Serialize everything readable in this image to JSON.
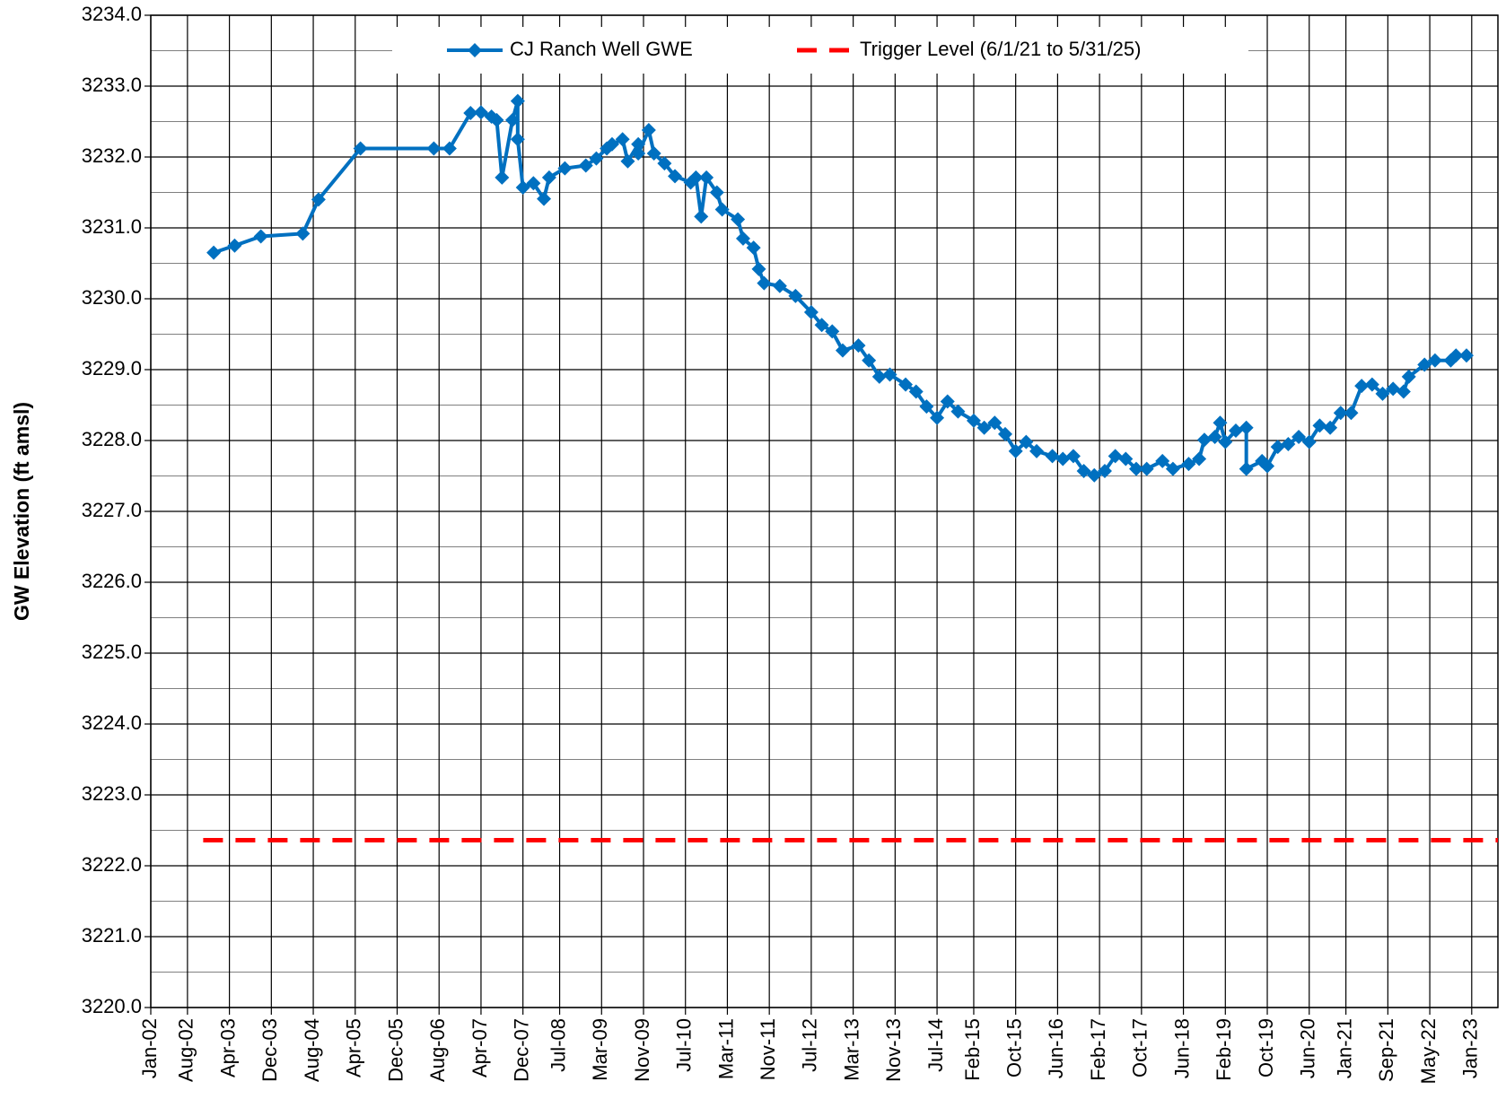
{
  "chart_data": {
    "type": "line",
    "y_label": "GW Elevation (ft amsl)",
    "legend": "top",
    "grid": true,
    "minor_grid": true,
    "xlim": [
      "2002-01",
      "2023-06"
    ],
    "xticks": [
      {
        "value": "2002-01",
        "label": "Jan-02"
      },
      {
        "value": "2002-08",
        "label": "Aug-02"
      },
      {
        "value": "2003-04",
        "label": "Apr-03"
      },
      {
        "value": "2003-12",
        "label": "Dec-03"
      },
      {
        "value": "2004-08",
        "label": "Aug-04"
      },
      {
        "value": "2005-04",
        "label": "Apr-05"
      },
      {
        "value": "2005-12",
        "label": "Dec-05"
      },
      {
        "value": "2006-08",
        "label": "Aug-06"
      },
      {
        "value": "2007-04",
        "label": "Apr-07"
      },
      {
        "value": "2007-12",
        "label": "Dec-07"
      },
      {
        "value": "2008-07",
        "label": "Jul-08"
      },
      {
        "value": "2009-03",
        "label": "Mar-09"
      },
      {
        "value": "2009-11",
        "label": "Nov-09"
      },
      {
        "value": "2010-07",
        "label": "Jul-10"
      },
      {
        "value": "2011-03",
        "label": "Mar-11"
      },
      {
        "value": "2011-11",
        "label": "Nov-11"
      },
      {
        "value": "2012-07",
        "label": "Jul-12"
      },
      {
        "value": "2013-03",
        "label": "Mar-13"
      },
      {
        "value": "2013-11",
        "label": "Nov-13"
      },
      {
        "value": "2014-07",
        "label": "Jul-14"
      },
      {
        "value": "2015-02",
        "label": "Feb-15"
      },
      {
        "value": "2015-10",
        "label": "Oct-15"
      },
      {
        "value": "2016-06",
        "label": "Jun-16"
      },
      {
        "value": "2017-02",
        "label": "Feb-17"
      },
      {
        "value": "2017-10",
        "label": "Oct-17"
      },
      {
        "value": "2018-06",
        "label": "Jun-18"
      },
      {
        "value": "2019-02",
        "label": "Feb-19"
      },
      {
        "value": "2019-10",
        "label": "Oct-19"
      },
      {
        "value": "2020-06",
        "label": "Jun-20"
      },
      {
        "value": "2021-01",
        "label": "Jan-21"
      },
      {
        "value": "2021-09",
        "label": "Sep-21"
      },
      {
        "value": "2022-05",
        "label": "May-22"
      },
      {
        "value": "2023-01",
        "label": "Jan-23"
      }
    ],
    "ylim": [
      3220,
      3234
    ],
    "yticks": [
      {
        "value": 3220,
        "label": "3220.0"
      },
      {
        "value": 3221,
        "label": "3221.0"
      },
      {
        "value": 3222,
        "label": "3222.0"
      },
      {
        "value": 3223,
        "label": "3223.0"
      },
      {
        "value": 3224,
        "label": "3224.0"
      },
      {
        "value": 3225,
        "label": "3225.0"
      },
      {
        "value": 3226,
        "label": "3226.0"
      },
      {
        "value": 3227,
        "label": "3227.0"
      },
      {
        "value": 3228,
        "label": "3228.0"
      },
      {
        "value": 3229,
        "label": "3229.0"
      },
      {
        "value": 3230,
        "label": "3230.0"
      },
      {
        "value": 3231,
        "label": "3231.0"
      },
      {
        "value": 3232,
        "label": "3232.0"
      },
      {
        "value": 3233,
        "label": "3233.0"
      },
      {
        "value": 3234,
        "label": "3234.0"
      }
    ],
    "series": [
      {
        "name": "CJ Ranch Well GWE",
        "color": "#0070c0",
        "marker": "diamond",
        "dashed": false,
        "x": [
          "2003-01",
          "2003-05",
          "2003-10",
          "2004-06",
          "2004-09",
          "2005-05",
          "2006-07",
          "2006-10",
          "2007-02",
          "2007-04",
          "2007-06",
          "2007-07",
          "2007-08",
          "2007-10",
          "2007-11",
          "2007-11",
          "2007-12",
          "2008-02",
          "2008-04",
          "2008-05",
          "2008-08",
          "2008-12",
          "2009-02",
          "2009-04",
          "2009-05",
          "2009-07",
          "2009-08",
          "2009-10",
          "2009-10",
          "2009-12",
          "2010-01",
          "2010-03",
          "2010-05",
          "2010-08",
          "2010-09",
          "2010-10",
          "2010-11",
          "2011-01",
          "2011-02",
          "2011-05",
          "2011-06",
          "2011-08",
          "2011-09",
          "2011-10",
          "2012-01",
          "2012-04",
          "2012-07",
          "2012-09",
          "2012-11",
          "2013-01",
          "2013-04",
          "2013-06",
          "2013-08",
          "2013-10",
          "2014-01",
          "2014-03",
          "2014-05",
          "2014-07",
          "2014-09",
          "2014-11",
          "2015-02",
          "2015-04",
          "2015-06",
          "2015-08",
          "2015-10",
          "2015-12",
          "2016-02",
          "2016-05",
          "2016-07",
          "2016-09",
          "2016-11",
          "2017-01",
          "2017-03",
          "2017-05",
          "2017-07",
          "2017-09",
          "2017-11",
          "2018-02",
          "2018-04",
          "2018-07",
          "2018-09",
          "2018-10",
          "2018-12",
          "2019-01",
          "2019-02",
          "2019-04",
          "2019-06",
          "2019-06",
          "2019-09",
          "2019-10",
          "2019-12",
          "2020-02",
          "2020-04",
          "2020-06",
          "2020-08",
          "2020-10",
          "2020-12",
          "2021-02",
          "2021-04",
          "2021-06",
          "2021-08",
          "2021-10",
          "2021-12",
          "2022-01",
          "2022-04",
          "2022-06",
          "2022-09",
          "2022-10",
          "2022-12"
        ],
        "values": [
          3230.65,
          3230.75,
          3230.88,
          3230.92,
          3231.4,
          3232.12,
          3232.12,
          3232.12,
          3232.62,
          3232.63,
          3232.57,
          3232.52,
          3231.71,
          3232.52,
          3232.79,
          3232.25,
          3231.57,
          3231.63,
          3231.41,
          3231.71,
          3231.84,
          3231.88,
          3231.98,
          3232.12,
          3232.18,
          3232.25,
          3231.94,
          3232.18,
          3232.05,
          3232.38,
          3232.05,
          3231.91,
          3231.73,
          3231.64,
          3231.71,
          3231.16,
          3231.71,
          3231.5,
          3231.26,
          3231.12,
          3230.85,
          3230.72,
          3230.42,
          3230.22,
          3230.18,
          3230.04,
          3229.81,
          3229.63,
          3229.54,
          3229.27,
          3229.34,
          3229.13,
          3228.9,
          3228.93,
          3228.79,
          3228.69,
          3228.48,
          3228.32,
          3228.55,
          3228.41,
          3228.28,
          3228.18,
          3228.25,
          3228.09,
          3227.85,
          3227.98,
          3227.85,
          3227.78,
          3227.74,
          3227.78,
          3227.57,
          3227.51,
          3227.57,
          3227.78,
          3227.74,
          3227.6,
          3227.6,
          3227.71,
          3227.6,
          3227.67,
          3227.74,
          3228.01,
          3228.05,
          3228.25,
          3227.98,
          3228.14,
          3228.18,
          3227.6,
          3227.71,
          3227.64,
          3227.91,
          3227.95,
          3228.05,
          3227.98,
          3228.21,
          3228.18,
          3228.39,
          3228.39,
          3228.77,
          3228.79,
          3228.66,
          3228.73,
          3228.69,
          3228.9,
          3229.07,
          3229.13,
          3229.13,
          3229.2,
          3229.2
        ]
      },
      {
        "name": "Trigger Level (6/1/21 to 5/31/25)",
        "color": "#ff0000",
        "marker": "none",
        "dashed": true,
        "x": [
          "2002-11",
          "2023-06"
        ],
        "values": [
          3222.36,
          3222.36
        ]
      }
    ]
  }
}
